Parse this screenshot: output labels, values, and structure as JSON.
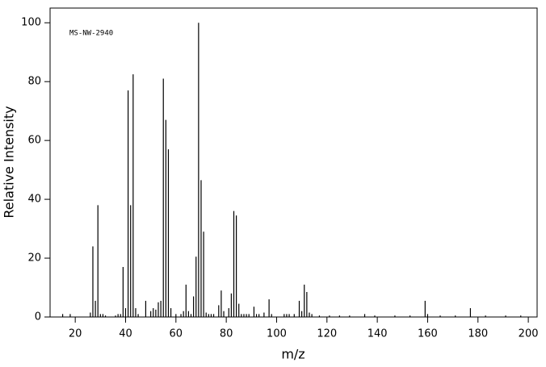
{
  "chart_data": {
    "type": "bar",
    "annotation": "MS-NW-2940",
    "x_label": "m/z",
    "y_label": "Relative Intensity",
    "color": "#000000",
    "xlim": [
      10,
      203.5
    ],
    "ylim": [
      0,
      105
    ],
    "xticks": [
      20,
      40,
      60,
      80,
      100,
      120,
      140,
      160,
      180,
      200
    ],
    "yticks": [
      0,
      20,
      40,
      60,
      80,
      100
    ],
    "x": [
      15,
      18,
      26,
      27,
      28,
      29,
      30,
      31,
      32,
      36,
      37,
      38,
      39,
      40,
      41,
      42,
      43,
      44,
      45,
      48,
      50,
      51,
      52,
      53,
      54,
      55,
      56,
      57,
      58,
      60,
      62,
      63,
      64,
      65,
      66,
      67,
      68,
      69,
      70,
      71,
      72,
      73,
      74,
      75,
      77,
      78,
      79,
      81,
      82,
      83,
      84,
      85,
      86,
      87,
      88,
      89,
      91,
      92,
      93,
      95,
      97,
      98,
      103,
      104,
      105,
      107,
      109,
      110,
      111,
      112,
      113,
      114,
      117,
      121,
      125,
      129,
      135,
      139,
      147,
      153,
      159,
      160,
      165,
      171,
      177,
      183,
      191,
      197
    ],
    "values": [
      1,
      1,
      1.5,
      24,
      5.5,
      38,
      1,
      1,
      0.5,
      0.5,
      1,
      1,
      17,
      3,
      77,
      38,
      82.5,
      3,
      1,
      5.5,
      2,
      3,
      2.5,
      5,
      5.5,
      81,
      67,
      57,
      3,
      1,
      1,
      2,
      11,
      2,
      1,
      7,
      20.5,
      100,
      46.5,
      29,
      1.5,
      1,
      1,
      1,
      4,
      9,
      2,
      3,
      8,
      36,
      34.5,
      4.5,
      1,
      1,
      1,
      1,
      3.5,
      1,
      1,
      1.5,
      6,
      1,
      1,
      1,
      1,
      1,
      5.5,
      2,
      11,
      8.5,
      1.5,
      1,
      0.5,
      0.5,
      0.5,
      0.5,
      1,
      0.5,
      0.5,
      0.5,
      5.5,
      1,
      0.5,
      0.5,
      3,
      0.5,
      0.5,
      0.5
    ]
  }
}
